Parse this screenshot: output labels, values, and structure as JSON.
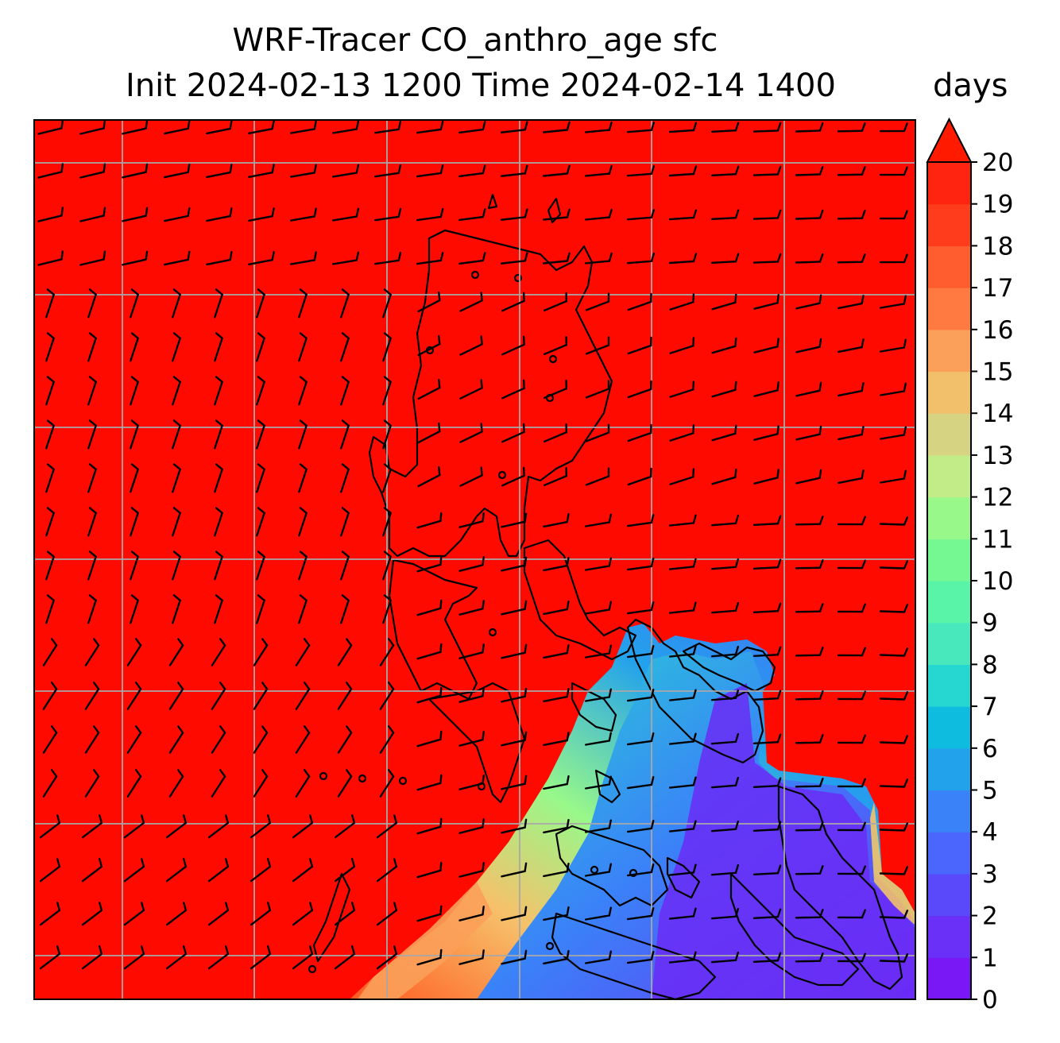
{
  "title": {
    "line1": "WRF-Tracer CO_anthro_age sfc",
    "line2": "Init 2024-02-13 1200 Time 2024-02-14 1400"
  },
  "colorbar": {
    "units": "days",
    "ticks": [
      "0",
      "1",
      "2",
      "3",
      "4",
      "5",
      "6",
      "7",
      "8",
      "9",
      "10",
      "11",
      "12",
      "13",
      "14",
      "15",
      "16",
      "17",
      "18",
      "19",
      "20"
    ],
    "colors": [
      "#7a18f5",
      "#6b30f8",
      "#5a48fb",
      "#4a66fc",
      "#3a82f8",
      "#23a2ec",
      "#0ebce0",
      "#26d6d1",
      "#48e8bc",
      "#5af4a8",
      "#75f892",
      "#98f88a",
      "#c2ec88",
      "#d6d483",
      "#f2c06a",
      "#fba05a",
      "#ff7a40",
      "#ff5c30",
      "#ff3d1d",
      "#ff2410"
    ],
    "extend": "max",
    "extend_color": "#ff1a00"
  },
  "map": {
    "background_color": "#ff0a00",
    "field": "CO_anthro_age",
    "level": "sfc",
    "wind_barbs": true,
    "gridlines": true,
    "coastlines": true
  }
}
